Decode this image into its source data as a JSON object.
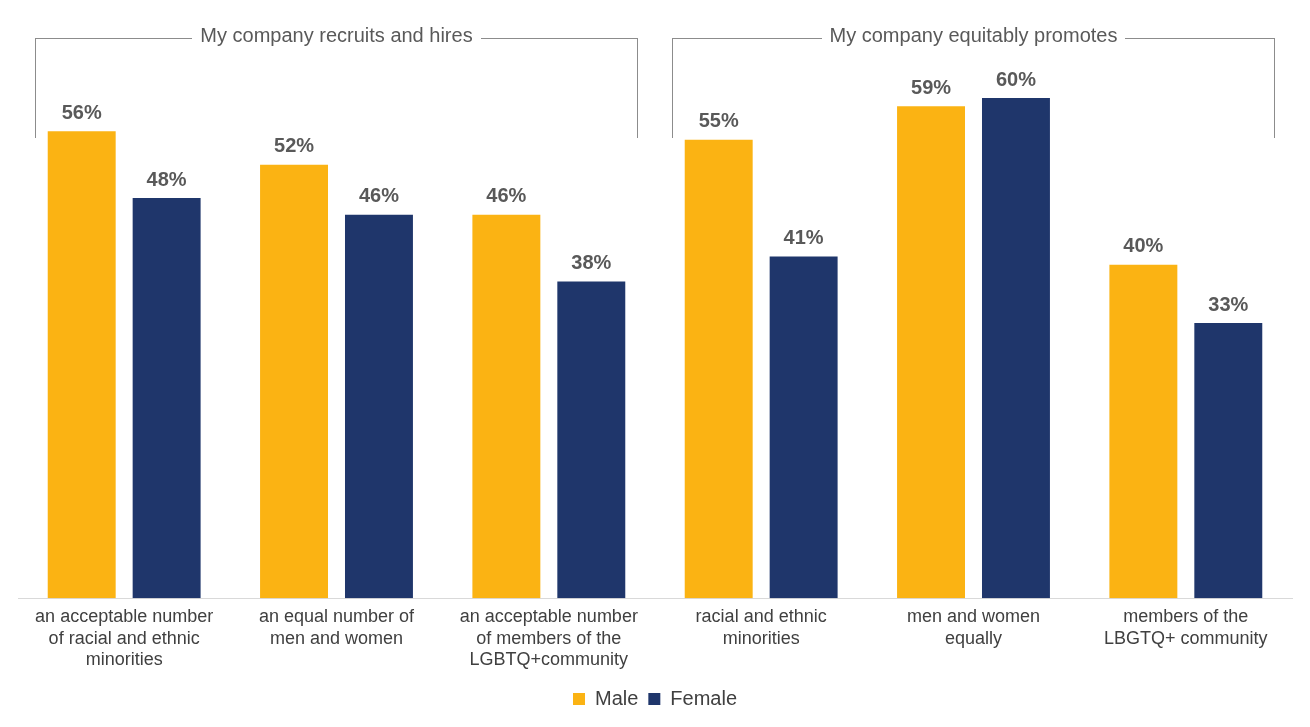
{
  "chart_data": {
    "type": "bar",
    "categories": [
      "an acceptable number of racial and ethnic minorities",
      "an equal number of men and women",
      "an acceptable number of members of the LGBTQ+community",
      "racial and ethnic minorities",
      "men and women equally",
      "members of the LBGTQ+ community"
    ],
    "series": [
      {
        "name": "Male",
        "color": "#fbb313",
        "values": [
          56,
          52,
          46,
          55,
          59,
          40
        ],
        "value_labels": [
          "56%",
          "52%",
          "46%",
          "55%",
          "59%",
          "40%"
        ]
      },
      {
        "name": "Female",
        "color": "#1f366b",
        "values": [
          48,
          46,
          38,
          41,
          60,
          33
        ],
        "value_labels": [
          "48%",
          "46%",
          "38%",
          "41%",
          "60%",
          "33%"
        ]
      }
    ],
    "annotations": [
      "My company recruits and hires",
      "My company equitably promotes"
    ],
    "tick_labels": "x",
    "grid": false,
    "legend": "bottom"
  }
}
